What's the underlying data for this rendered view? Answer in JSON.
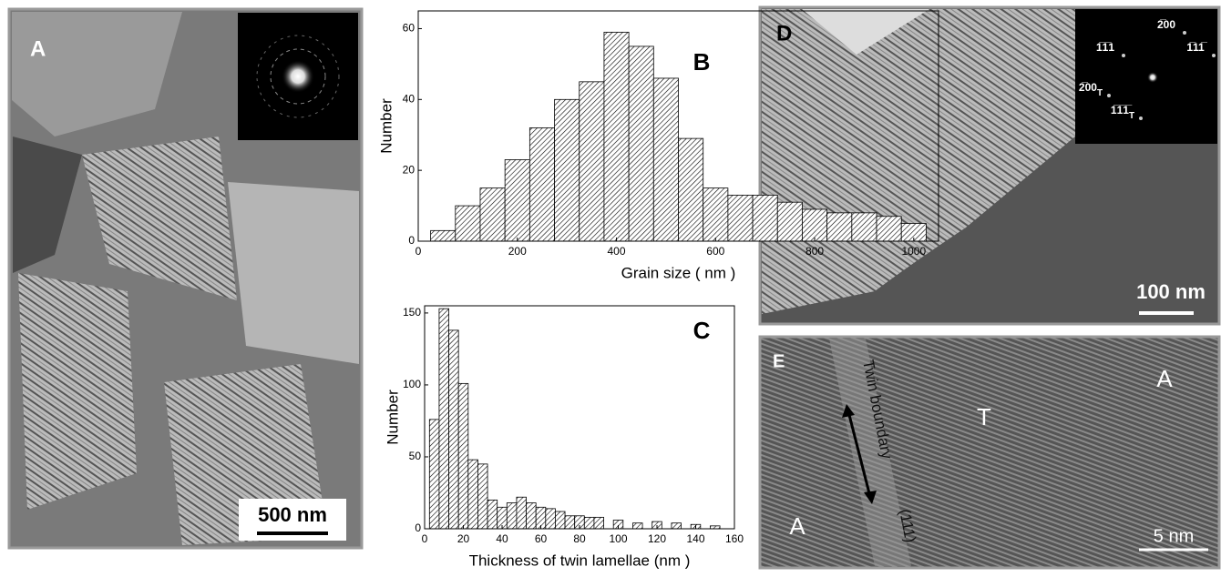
{
  "panels": {
    "a": {
      "label": "A",
      "scale_bar": "500 nm"
    },
    "d": {
      "label": "D",
      "scale_bar": "100 nm",
      "diffraction": [
        {
          "text": "2̅00"
        },
        {
          "text": "1̅1̅1"
        },
        {
          "text": "1̅11̅"
        },
        {
          "text": "2̅00",
          "sub": "T"
        },
        {
          "text": "1̅1̅1̅",
          "sub": "T"
        }
      ]
    },
    "e": {
      "label": "E",
      "scale_bar": "5 nm",
      "boundary": "Twin boundary",
      "plane": "(111)",
      "grain_left": "A",
      "twin": "T",
      "grain_right": "A"
    }
  },
  "chart_data": [
    {
      "type": "histogram",
      "panel_label": "B",
      "xlabel": "Grain size  ( nm )",
      "ylabel": "Number",
      "bins": [
        25,
        75,
        125,
        175,
        225,
        275,
        325,
        375,
        425,
        475,
        525,
        575,
        625,
        675,
        725,
        775,
        825,
        875,
        925,
        975,
        1025
      ],
      "values": [
        3,
        10,
        15,
        23,
        32,
        40,
        45,
        59,
        55,
        46,
        29,
        15,
        13,
        13,
        11,
        9,
        8,
        8,
        7,
        5
      ],
      "xlim": [
        0,
        1050
      ],
      "ylim": [
        0,
        65
      ],
      "xticks": [
        0,
        200,
        400,
        600,
        800,
        1000
      ],
      "yticks": [
        0,
        20,
        40,
        60
      ],
      "hatch": true
    },
    {
      "type": "histogram",
      "panel_label": "C",
      "xlabel": "Thickness of twin lamellae (nm )",
      "ylabel": "Number",
      "bins": [
        2.5,
        7.5,
        12.5,
        17.5,
        22.5,
        27.5,
        32.5,
        37.5,
        42.5,
        47.5,
        52.5,
        57.5,
        62.5,
        67.5,
        72.5,
        77.5,
        82.5,
        87.5,
        92.5,
        97.5,
        102.5,
        107.5,
        112.5,
        117.5,
        122.5,
        127.5,
        132.5,
        137.5,
        142.5,
        147.5,
        152.5
      ],
      "values": [
        76,
        153,
        138,
        101,
        48,
        45,
        20,
        15,
        18,
        22,
        18,
        15,
        14,
        12,
        9,
        9,
        8,
        8,
        0,
        6,
        0,
        4,
        0,
        5,
        0,
        4,
        0,
        3,
        0,
        2
      ],
      "xlim": [
        0,
        160
      ],
      "ylim": [
        0,
        155
      ],
      "xticks": [
        0,
        20,
        40,
        60,
        80,
        100,
        120,
        140,
        160
      ],
      "yticks": [
        0,
        50,
        100,
        150
      ],
      "hatch": true
    }
  ]
}
